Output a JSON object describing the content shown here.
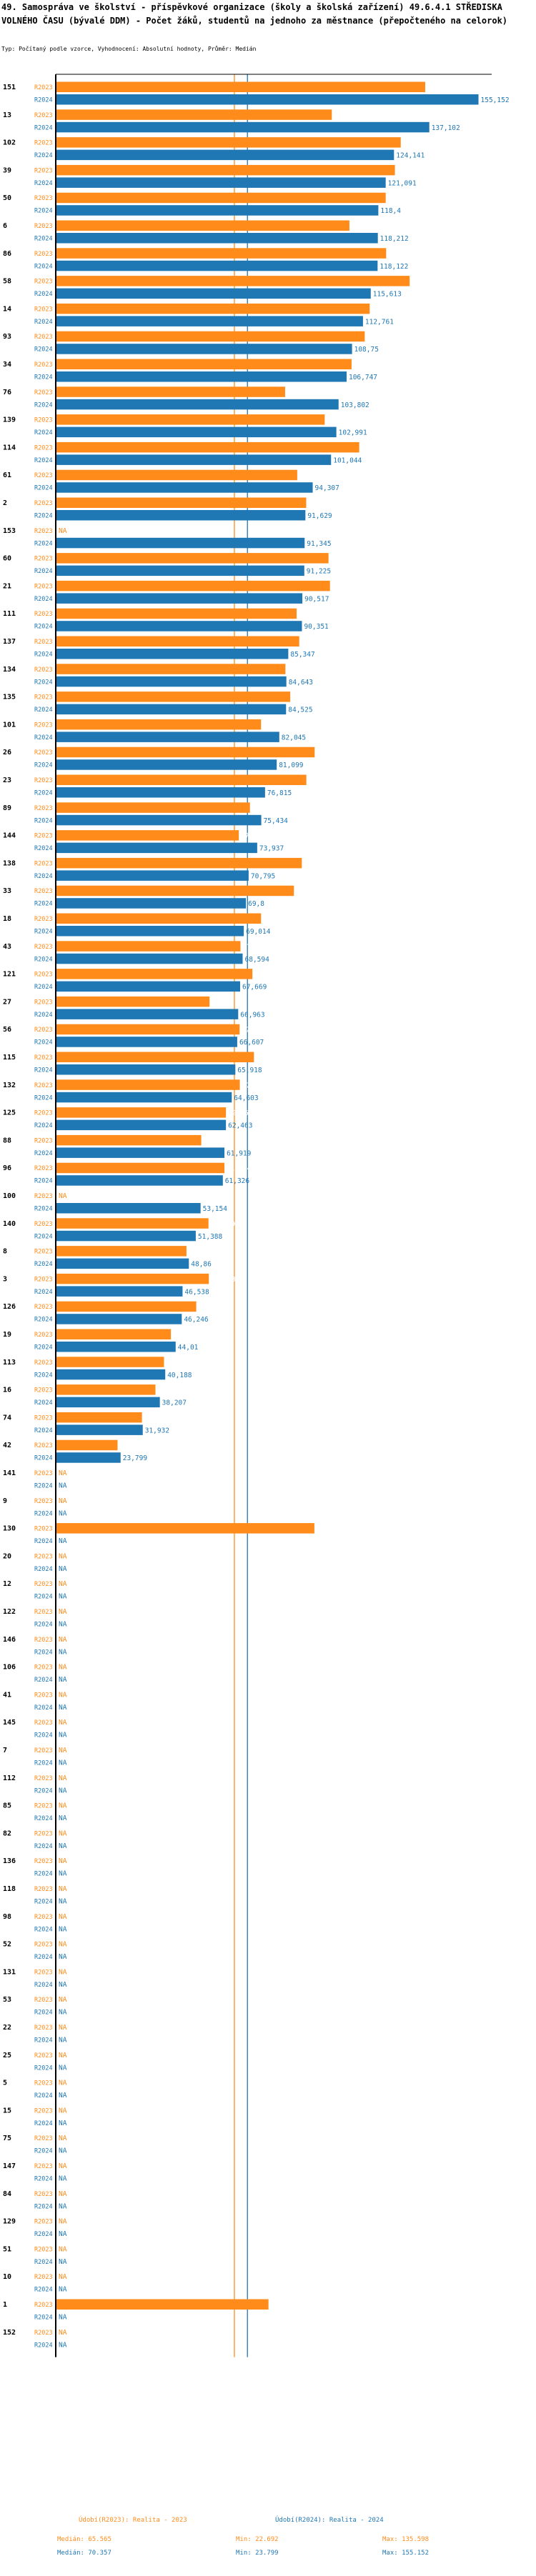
{
  "header": {
    "title": "49. Samospráva ve školství - příspěvkové organizace (školy a školská zařízení) 49.6.4.1 STŘEDISKA VOLNÉHO ČASU (bývalé DDM) - Počet žáků, studentů na jednoho za městnance (přepočteného na celorok)",
    "subtitle": "Typ: Počítaný podle vzorce, Vyhodnocení: Absolutní hodnoty, Průměr: Medián"
  },
  "colors": {
    "s2023": "#ff8c1a",
    "s2024": "#1f77b4",
    "axis": "#000000",
    "grid": "#dddddd"
  },
  "chart_data": {
    "type": "bar",
    "orientation": "horizontal",
    "title": "49.6.4.1 STŘEDISKA VOLNÉHO ČASU (bývalé DDM) - Počet žáků, studentů na jednoho zaměstnance (přepočteného na celorok)",
    "xlim": [
      0,
      160
    ],
    "series": [
      {
        "name": "R2023",
        "legend": "Údobí(R2023): Realita - 2023",
        "median_label": "Medián: 65.565",
        "min_label": "Min: 22.692",
        "max_label": "Max: 135.598",
        "median": 65.565
      },
      {
        "name": "R2024",
        "legend": "Údobí(R2024): Realita - 2024",
        "median_label": "Medián: 70.357",
        "min_label": "Min: 23.799",
        "max_label": "Max: 155.152",
        "median": 70.357
      }
    ],
    "categories": [
      {
        "id": "151",
        "v2023": 135.598,
        "l2023": "135,598",
        "v2024": 155.152,
        "l2024": "155,152"
      },
      {
        "id": "13",
        "v2023": 101.325,
        "l2023": "101,325",
        "v2024": 137.102,
        "l2024": "137,102"
      },
      {
        "id": "102",
        "v2023": 126.621,
        "l2023": "126,621",
        "v2024": 124.141,
        "l2024": "124,141"
      },
      {
        "id": "39",
        "v2023": 124.485,
        "l2023": "124,485",
        "v2024": 121.091,
        "l2024": "121,091"
      },
      {
        "id": "50",
        "v2023": 121.092,
        "l2023": "121,092",
        "v2024": 118.4,
        "l2024": "118,4"
      },
      {
        "id": "6",
        "v2023": 107.783,
        "l2023": "107,783",
        "v2024": 118.212,
        "l2024": "118,212"
      },
      {
        "id": "86",
        "v2023": 121.27,
        "l2023": "121,27",
        "v2024": 118.122,
        "l2024": "118,122"
      },
      {
        "id": "58",
        "v2023": 129.886,
        "l2023": "129,886",
        "v2024": 115.613,
        "l2024": "115,613"
      },
      {
        "id": "14",
        "v2023": 115.221,
        "l2023": "115,221",
        "v2024": 112.761,
        "l2024": "112,761"
      },
      {
        "id": "93",
        "v2023": 113.405,
        "l2023": "113,405",
        "v2024": 108.75,
        "l2024": "108,75"
      },
      {
        "id": "34",
        "v2023": 108.569,
        "l2023": "108,569",
        "v2024": 106.747,
        "l2024": "106,747"
      },
      {
        "id": "76",
        "v2023": 84.183,
        "l2023": "84,183",
        "v2024": 103.802,
        "l2024": "103,802"
      },
      {
        "id": "139",
        "v2023": 98.706,
        "l2023": "98,706",
        "v2024": 102.991,
        "l2024": "102,991"
      },
      {
        "id": "114",
        "v2023": 111.379,
        "l2023": "111,379",
        "v2024": 101.044,
        "l2024": "101,044"
      },
      {
        "id": "61",
        "v2023": 88.626,
        "l2023": "88,626",
        "v2024": 94.307,
        "l2024": "94,307"
      },
      {
        "id": "2",
        "v2023": 91.933,
        "l2023": "91,933",
        "v2024": 91.629,
        "l2024": "91,629"
      },
      {
        "id": "153",
        "v2023": null,
        "l2023": "NA",
        "v2024": 91.345,
        "l2024": "91,345"
      },
      {
        "id": "60",
        "v2023": 100.103,
        "l2023": "100,103",
        "v2024": 91.225,
        "l2024": "91,225"
      },
      {
        "id": "21",
        "v2023": 100.647,
        "l2023": "100,647",
        "v2024": 90.517,
        "l2024": "90,517"
      },
      {
        "id": "111",
        "v2023": 88.406,
        "l2023": "88,406",
        "v2024": 90.351,
        "l2024": "90,351"
      },
      {
        "id": "137",
        "v2023": 89.363,
        "l2023": "89,363",
        "v2024": 85.347,
        "l2024": "85,347"
      },
      {
        "id": "134",
        "v2023": 84.285,
        "l2023": "84,285",
        "v2024": 84.643,
        "l2024": "84,643"
      },
      {
        "id": "135",
        "v2023": 86.065,
        "l2023": "86,065",
        "v2024": 84.525,
        "l2024": "84,525"
      },
      {
        "id": "101",
        "v2023": 75.342,
        "l2023": "75,342",
        "v2024": 82.045,
        "l2024": "82,045"
      },
      {
        "id": "26",
        "v2023": 95.026,
        "l2023": "95,026",
        "v2024": 81.099,
        "l2024": "81,099"
      },
      {
        "id": "23",
        "v2023": 91.972,
        "l2023": "91,972",
        "v2024": 76.815,
        "l2024": "76,815"
      },
      {
        "id": "89",
        "v2023": 71.273,
        "l2023": "71,273",
        "v2024": 75.434,
        "l2024": "75,434"
      },
      {
        "id": "144",
        "v2023": 67.185,
        "l2023": "67,185",
        "v2024": 73.937,
        "l2024": "73,937"
      },
      {
        "id": "138",
        "v2023": 90.314,
        "l2023": "90,314",
        "v2024": 70.795,
        "l2024": "70,795"
      },
      {
        "id": "33",
        "v2023": 87.41,
        "l2023": "87,41",
        "v2024": 69.8,
        "l2024": "69,8"
      },
      {
        "id": "18",
        "v2023": 75.351,
        "l2023": "75,351",
        "v2024": 69.014,
        "l2024": "69,014"
      },
      {
        "id": "43",
        "v2023": 67.802,
        "l2023": "67,802",
        "v2024": 68.594,
        "l2024": "68,594"
      },
      {
        "id": "121",
        "v2023": 72.174,
        "l2023": "72,174",
        "v2024": 67.669,
        "l2024": "67,669"
      },
      {
        "id": "27",
        "v2023": 56.44,
        "l2023": "56,44",
        "v2024": 66.963,
        "l2024": "66,963"
      },
      {
        "id": "56",
        "v2023": 67.479,
        "l2023": "67,479",
        "v2024": 66.607,
        "l2024": "66,607"
      },
      {
        "id": "115",
        "v2023": 72.742,
        "l2023": "72,742",
        "v2024": 65.918,
        "l2024": "65,918"
      },
      {
        "id": "132",
        "v2023": 67.556,
        "l2023": "67,556",
        "v2024": 64.603,
        "l2024": "64,603"
      },
      {
        "id": "125",
        "v2023": 62.463,
        "l2023": "62,463",
        "v2024": 62.463,
        "l2024": "62,463"
      },
      {
        "id": "88",
        "v2023": 53.401,
        "l2023": "53,401",
        "v2024": 61.919,
        "l2024": "61,919"
      },
      {
        "id": "96",
        "v2023": 61.904,
        "l2023": "61,904",
        "v2024": 61.326,
        "l2024": "61,326"
      },
      {
        "id": "100",
        "v2023": null,
        "l2023": "NA",
        "v2024": 53.154,
        "l2024": "53,154"
      },
      {
        "id": "140",
        "v2023": 56.059,
        "l2023": "56,059",
        "v2024": 51.388,
        "l2024": "51,388"
      },
      {
        "id": "8",
        "v2023": 47.976,
        "l2023": "47,976",
        "v2024": 48.86,
        "l2024": "48,86"
      },
      {
        "id": "3",
        "v2023": 56.188,
        "l2023": "56,188",
        "v2024": 46.538,
        "l2024": "46,538"
      },
      {
        "id": "126",
        "v2023": 51.561,
        "l2023": "51,561",
        "v2024": 46.246,
        "l2024": "46,246"
      },
      {
        "id": "19",
        "v2023": 42.259,
        "l2023": "42,259",
        "v2024": 44.01,
        "l2024": "44,01"
      },
      {
        "id": "113",
        "v2023": 39.727,
        "l2023": "39,727",
        "v2024": 40.188,
        "l2024": "40,188"
      },
      {
        "id": "16",
        "v2023": 36.592,
        "l2023": "36,592",
        "v2024": 38.207,
        "l2024": "38,207"
      },
      {
        "id": "74",
        "v2023": 31.638,
        "l2023": "31,638",
        "v2024": 31.932,
        "l2024": "31,932"
      },
      {
        "id": "42",
        "v2023": 22.692,
        "l2023": "22,692",
        "v2024": 23.799,
        "l2024": "23,799"
      },
      {
        "id": "141",
        "v2023": null,
        "l2023": "NA",
        "v2024": null,
        "l2024": "NA"
      },
      {
        "id": "9",
        "v2023": null,
        "l2023": "NA",
        "v2024": null,
        "l2024": "NA"
      },
      {
        "id": "130",
        "v2023": 94.921,
        "l2023": "94,921",
        "v2024": null,
        "l2024": "NA"
      },
      {
        "id": "20",
        "v2023": null,
        "l2023": "NA",
        "v2024": null,
        "l2024": "NA"
      },
      {
        "id": "12",
        "v2023": null,
        "l2023": "NA",
        "v2024": null,
        "l2024": "NA"
      },
      {
        "id": "122",
        "v2023": null,
        "l2023": "NA",
        "v2024": null,
        "l2024": "NA"
      },
      {
        "id": "146",
        "v2023": null,
        "l2023": "NA",
        "v2024": null,
        "l2024": "NA"
      },
      {
        "id": "106",
        "v2023": null,
        "l2023": "NA",
        "v2024": null,
        "l2024": "NA"
      },
      {
        "id": "41",
        "v2023": null,
        "l2023": "NA",
        "v2024": null,
        "l2024": "NA"
      },
      {
        "id": "145",
        "v2023": null,
        "l2023": "NA",
        "v2024": null,
        "l2024": "NA"
      },
      {
        "id": "7",
        "v2023": null,
        "l2023": "NA",
        "v2024": null,
        "l2024": "NA"
      },
      {
        "id": "112",
        "v2023": null,
        "l2023": "NA",
        "v2024": null,
        "l2024": "NA"
      },
      {
        "id": "85",
        "v2023": null,
        "l2023": "NA",
        "v2024": null,
        "l2024": "NA"
      },
      {
        "id": "82",
        "v2023": null,
        "l2023": "NA",
        "v2024": null,
        "l2024": "NA"
      },
      {
        "id": "136",
        "v2023": null,
        "l2023": "NA",
        "v2024": null,
        "l2024": "NA"
      },
      {
        "id": "118",
        "v2023": null,
        "l2023": "NA",
        "v2024": null,
        "l2024": "NA"
      },
      {
        "id": "98",
        "v2023": null,
        "l2023": "NA",
        "v2024": null,
        "l2024": "NA"
      },
      {
        "id": "52",
        "v2023": null,
        "l2023": "NA",
        "v2024": null,
        "l2024": "NA"
      },
      {
        "id": "131",
        "v2023": null,
        "l2023": "NA",
        "v2024": null,
        "l2024": "NA"
      },
      {
        "id": "53",
        "v2023": null,
        "l2023": "NA",
        "v2024": null,
        "l2024": "NA"
      },
      {
        "id": "22",
        "v2023": null,
        "l2023": "NA",
        "v2024": null,
        "l2024": "NA"
      },
      {
        "id": "25",
        "v2023": null,
        "l2023": "NA",
        "v2024": null,
        "l2024": "NA"
      },
      {
        "id": "5",
        "v2023": null,
        "l2023": "NA",
        "v2024": null,
        "l2024": "NA"
      },
      {
        "id": "15",
        "v2023": null,
        "l2023": "NA",
        "v2024": null,
        "l2024": "NA"
      },
      {
        "id": "75",
        "v2023": null,
        "l2023": "NA",
        "v2024": null,
        "l2024": "NA"
      },
      {
        "id": "147",
        "v2023": null,
        "l2023": "NA",
        "v2024": null,
        "l2024": "NA"
      },
      {
        "id": "84",
        "v2023": null,
        "l2023": "NA",
        "v2024": null,
        "l2024": "NA"
      },
      {
        "id": "129",
        "v2023": null,
        "l2023": "NA",
        "v2024": null,
        "l2024": "NA"
      },
      {
        "id": "51",
        "v2023": null,
        "l2023": "NA",
        "v2024": null,
        "l2024": "NA"
      },
      {
        "id": "10",
        "v2023": null,
        "l2023": "NA",
        "v2024": null,
        "l2024": "NA"
      },
      {
        "id": "1",
        "v2023": 78.076,
        "l2023": "78,076",
        "v2024": null,
        "l2024": "NA"
      },
      {
        "id": "152",
        "v2023": null,
        "l2023": "NA",
        "v2024": null,
        "l2024": "NA"
      }
    ]
  }
}
